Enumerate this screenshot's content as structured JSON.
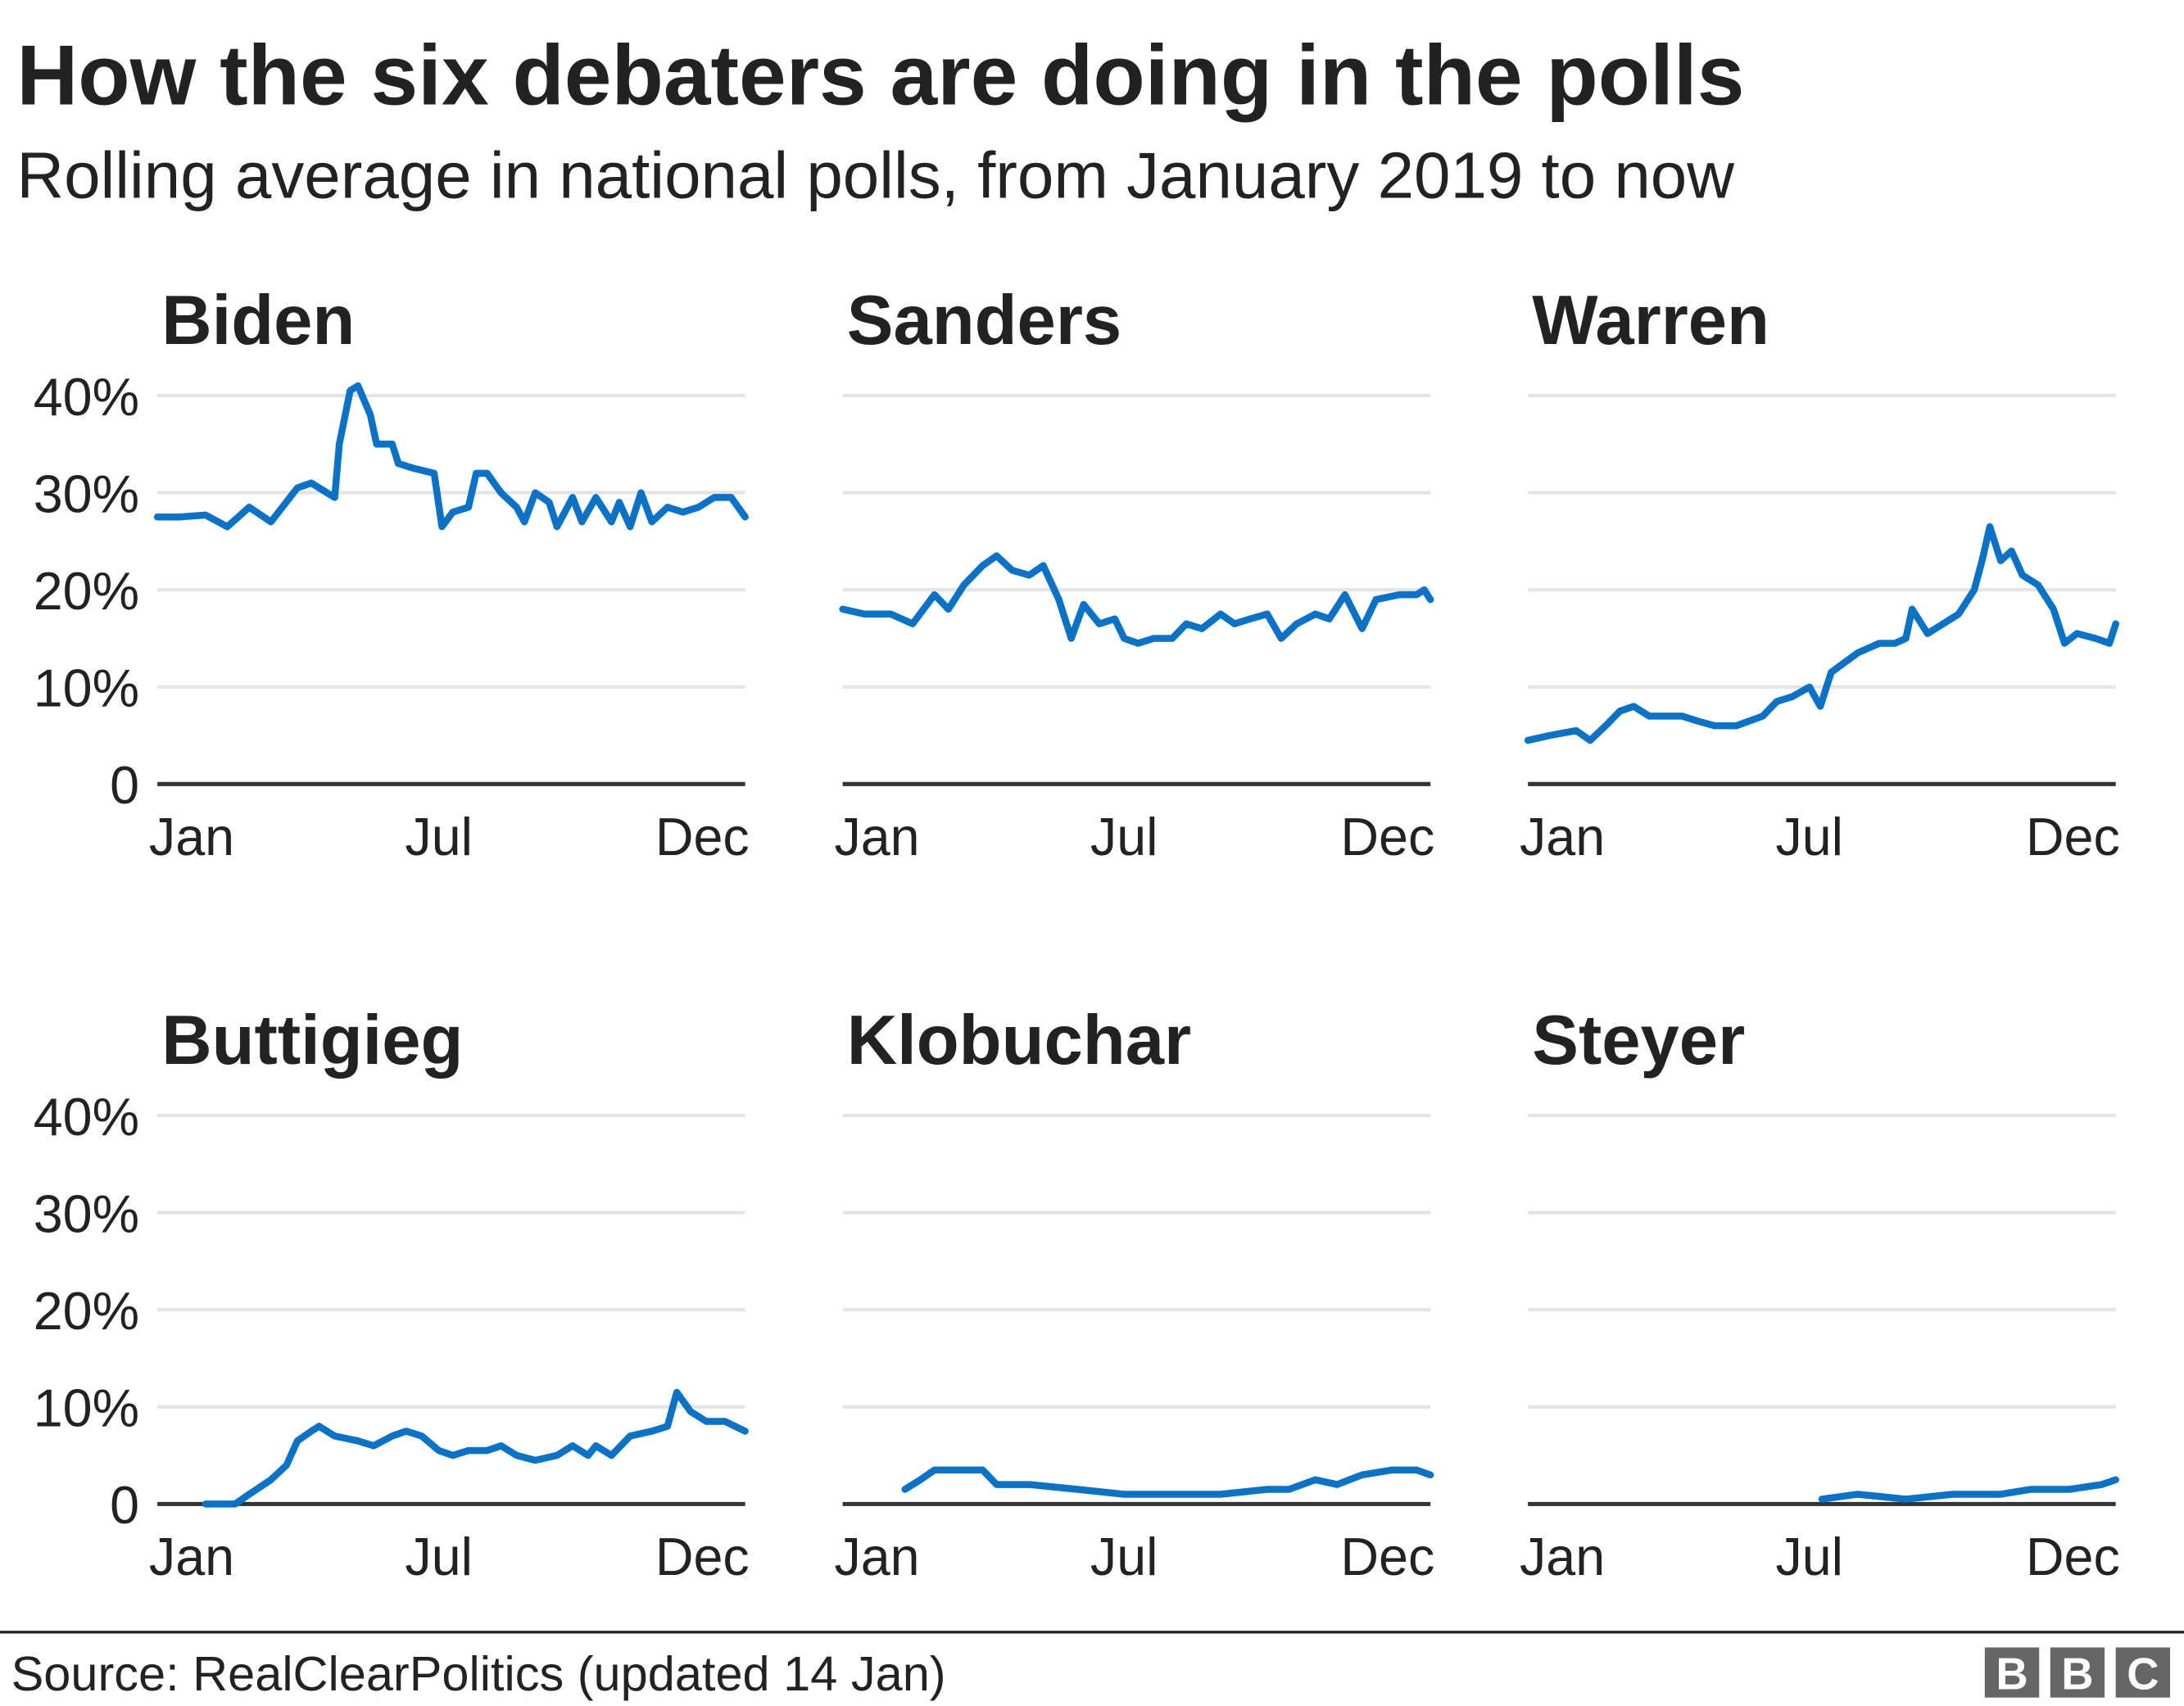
{
  "title": "How the six debaters are doing in the polls",
  "subtitle": "Rolling average in national polls, from January 2019 to now",
  "source": "Source: RealClearPolitics (updated 14 Jan)",
  "logo": "BBC",
  "colors": {
    "line": "#0b72c6",
    "grid": "#e4e4e4",
    "axis": "#333333",
    "text": "#222222"
  },
  "chart_data": {
    "type": "line",
    "layout": "small-multiples 2 rows x 3 columns",
    "x_range": [
      "2019-01-01",
      "2020-01-14"
    ],
    "x_ticks": [
      {
        "date": "2019-01-01",
        "label": "Jan"
      },
      {
        "date": "2019-07-01",
        "label": "Jul"
      },
      {
        "date": "2019-12-01",
        "label": "Dec"
      }
    ],
    "ylim": [
      0,
      40
    ],
    "y_ticks": [
      {
        "value": 0,
        "label": "0"
      },
      {
        "value": 10,
        "label": "10%"
      },
      {
        "value": 20,
        "label": "20%"
      },
      {
        "value": 30,
        "label": "30%"
      },
      {
        "value": 40,
        "label": "40%"
      }
    ],
    "grid": true,
    "series": [
      {
        "name": "Biden",
        "points": [
          [
            "2019-01-01",
            27.5
          ],
          [
            "2019-01-15",
            27.5
          ],
          [
            "2019-02-01",
            27.7
          ],
          [
            "2019-02-15",
            26.5
          ],
          [
            "2019-03-01",
            28.5
          ],
          [
            "2019-03-15",
            27
          ],
          [
            "2019-04-01",
            30.5
          ],
          [
            "2019-04-10",
            31
          ],
          [
            "2019-04-20",
            30
          ],
          [
            "2019-04-25",
            29.5
          ],
          [
            "2019-04-28",
            35
          ],
          [
            "2019-05-05",
            40.5
          ],
          [
            "2019-05-10",
            41
          ],
          [
            "2019-05-18",
            38
          ],
          [
            "2019-05-22",
            35
          ],
          [
            "2019-06-01",
            35
          ],
          [
            "2019-06-05",
            33
          ],
          [
            "2019-06-15",
            32.5
          ],
          [
            "2019-06-28",
            32
          ],
          [
            "2019-07-03",
            26.5
          ],
          [
            "2019-07-10",
            28
          ],
          [
            "2019-07-20",
            28.5
          ],
          [
            "2019-07-25",
            32
          ],
          [
            "2019-08-01",
            32
          ],
          [
            "2019-08-10",
            30
          ],
          [
            "2019-08-20",
            28.5
          ],
          [
            "2019-08-25",
            27
          ],
          [
            "2019-09-01",
            30
          ],
          [
            "2019-09-10",
            29
          ],
          [
            "2019-09-15",
            26.5
          ],
          [
            "2019-09-25",
            29.5
          ],
          [
            "2019-10-01",
            27
          ],
          [
            "2019-10-10",
            29.5
          ],
          [
            "2019-10-20",
            27
          ],
          [
            "2019-10-25",
            29
          ],
          [
            "2019-11-01",
            26.5
          ],
          [
            "2019-11-08",
            30
          ],
          [
            "2019-11-15",
            27
          ],
          [
            "2019-11-25",
            28.5
          ],
          [
            "2019-12-05",
            28
          ],
          [
            "2019-12-15",
            28.5
          ],
          [
            "2019-12-25",
            29.5
          ],
          [
            "2020-01-05",
            29.5
          ],
          [
            "2020-01-14",
            27.5
          ]
        ]
      },
      {
        "name": "Sanders",
        "points": [
          [
            "2019-01-01",
            18
          ],
          [
            "2019-01-15",
            17.5
          ],
          [
            "2019-02-01",
            17.5
          ],
          [
            "2019-02-15",
            16.5
          ],
          [
            "2019-03-01",
            19.5
          ],
          [
            "2019-03-10",
            18
          ],
          [
            "2019-03-20",
            20.5
          ],
          [
            "2019-04-01",
            22.5
          ],
          [
            "2019-04-10",
            23.5
          ],
          [
            "2019-04-20",
            22
          ],
          [
            "2019-05-01",
            21.5
          ],
          [
            "2019-05-10",
            22.5
          ],
          [
            "2019-05-20",
            19
          ],
          [
            "2019-05-28",
            15
          ],
          [
            "2019-06-05",
            18.5
          ],
          [
            "2019-06-15",
            16.5
          ],
          [
            "2019-06-25",
            17
          ],
          [
            "2019-07-01",
            15
          ],
          [
            "2019-07-10",
            14.5
          ],
          [
            "2019-07-20",
            15
          ],
          [
            "2019-08-01",
            15
          ],
          [
            "2019-08-10",
            16.5
          ],
          [
            "2019-08-20",
            16
          ],
          [
            "2019-09-01",
            17.5
          ],
          [
            "2019-09-10",
            16.5
          ],
          [
            "2019-09-20",
            17
          ],
          [
            "2019-10-01",
            17.5
          ],
          [
            "2019-10-10",
            15
          ],
          [
            "2019-10-20",
            16.5
          ],
          [
            "2019-11-01",
            17.5
          ],
          [
            "2019-11-10",
            17
          ],
          [
            "2019-11-20",
            19.5
          ],
          [
            "2019-12-01",
            16
          ],
          [
            "2019-12-10",
            19
          ],
          [
            "2019-12-25",
            19.5
          ],
          [
            "2020-01-05",
            19.5
          ],
          [
            "2020-01-10",
            20
          ],
          [
            "2020-01-14",
            19
          ]
        ]
      },
      {
        "name": "Warren",
        "points": [
          [
            "2019-01-01",
            4.5
          ],
          [
            "2019-01-15",
            5
          ],
          [
            "2019-02-01",
            5.5
          ],
          [
            "2019-02-10",
            4.5
          ],
          [
            "2019-02-20",
            6
          ],
          [
            "2019-03-01",
            7.5
          ],
          [
            "2019-03-10",
            8
          ],
          [
            "2019-03-20",
            7
          ],
          [
            "2019-04-10",
            7
          ],
          [
            "2019-04-20",
            6.5
          ],
          [
            "2019-05-01",
            6
          ],
          [
            "2019-05-15",
            6
          ],
          [
            "2019-06-01",
            7
          ],
          [
            "2019-06-10",
            8.5
          ],
          [
            "2019-06-20",
            9
          ],
          [
            "2019-07-01",
            10
          ],
          [
            "2019-07-08",
            8
          ],
          [
            "2019-07-15",
            11.5
          ],
          [
            "2019-08-01",
            13.5
          ],
          [
            "2019-08-15",
            14.5
          ],
          [
            "2019-08-25",
            14.5
          ],
          [
            "2019-09-01",
            15
          ],
          [
            "2019-09-05",
            18
          ],
          [
            "2019-09-15",
            15.5
          ],
          [
            "2019-09-25",
            16.5
          ],
          [
            "2019-10-05",
            17.5
          ],
          [
            "2019-10-15",
            20
          ],
          [
            "2019-10-20",
            23
          ],
          [
            "2019-10-25",
            26.5
          ],
          [
            "2019-11-01",
            23
          ],
          [
            "2019-11-08",
            24
          ],
          [
            "2019-11-15",
            21.5
          ],
          [
            "2019-11-25",
            20.5
          ],
          [
            "2019-12-05",
            18
          ],
          [
            "2019-12-12",
            14.5
          ],
          [
            "2019-12-20",
            15.5
          ],
          [
            "2020-01-01",
            15
          ],
          [
            "2020-01-10",
            14.5
          ],
          [
            "2020-01-14",
            16.5
          ]
        ]
      },
      {
        "name": "Buttigieg",
        "points": [
          [
            "2019-02-01",
            0
          ],
          [
            "2019-02-20",
            0
          ],
          [
            "2019-03-01",
            1
          ],
          [
            "2019-03-15",
            2.5
          ],
          [
            "2019-03-25",
            4
          ],
          [
            "2019-04-01",
            6.5
          ],
          [
            "2019-04-10",
            7.5
          ],
          [
            "2019-04-15",
            8
          ],
          [
            "2019-04-25",
            7
          ],
          [
            "2019-05-10",
            6.5
          ],
          [
            "2019-05-20",
            6
          ],
          [
            "2019-06-01",
            7
          ],
          [
            "2019-06-10",
            7.5
          ],
          [
            "2019-06-20",
            7
          ],
          [
            "2019-07-01",
            5.5
          ],
          [
            "2019-07-10",
            5
          ],
          [
            "2019-07-20",
            5.5
          ],
          [
            "2019-08-01",
            5.5
          ],
          [
            "2019-08-10",
            6
          ],
          [
            "2019-08-20",
            5
          ],
          [
            "2019-09-01",
            4.5
          ],
          [
            "2019-09-15",
            5
          ],
          [
            "2019-09-25",
            6
          ],
          [
            "2019-10-05",
            5
          ],
          [
            "2019-10-10",
            6
          ],
          [
            "2019-10-20",
            5
          ],
          [
            "2019-11-01",
            7
          ],
          [
            "2019-11-15",
            7.5
          ],
          [
            "2019-11-25",
            8
          ],
          [
            "2019-12-01",
            11.5
          ],
          [
            "2019-12-10",
            9.5
          ],
          [
            "2019-12-20",
            8.5
          ],
          [
            "2020-01-01",
            8.5
          ],
          [
            "2020-01-14",
            7.5
          ]
        ]
      },
      {
        "name": "Klobuchar",
        "points": [
          [
            "2019-02-10",
            1.5
          ],
          [
            "2019-02-20",
            2.5
          ],
          [
            "2019-03-01",
            3.5
          ],
          [
            "2019-03-15",
            3.5
          ],
          [
            "2019-04-01",
            3.5
          ],
          [
            "2019-04-10",
            2
          ],
          [
            "2019-05-01",
            2
          ],
          [
            "2019-06-01",
            1.5
          ],
          [
            "2019-07-01",
            1
          ],
          [
            "2019-08-01",
            1
          ],
          [
            "2019-09-01",
            1
          ],
          [
            "2019-10-01",
            1.5
          ],
          [
            "2019-10-15",
            1.5
          ],
          [
            "2019-11-01",
            2.5
          ],
          [
            "2019-11-15",
            2
          ],
          [
            "2019-12-01",
            3
          ],
          [
            "2019-12-20",
            3.5
          ],
          [
            "2020-01-05",
            3.5
          ],
          [
            "2020-01-14",
            3
          ]
        ]
      },
      {
        "name": "Steyer",
        "points": [
          [
            "2019-07-09",
            0.5
          ],
          [
            "2019-08-01",
            1
          ],
          [
            "2019-09-01",
            0.5
          ],
          [
            "2019-10-01",
            1
          ],
          [
            "2019-11-01",
            1
          ],
          [
            "2019-11-20",
            1.5
          ],
          [
            "2019-12-15",
            1.5
          ],
          [
            "2020-01-05",
            2
          ],
          [
            "2020-01-14",
            2.5
          ]
        ]
      }
    ]
  }
}
